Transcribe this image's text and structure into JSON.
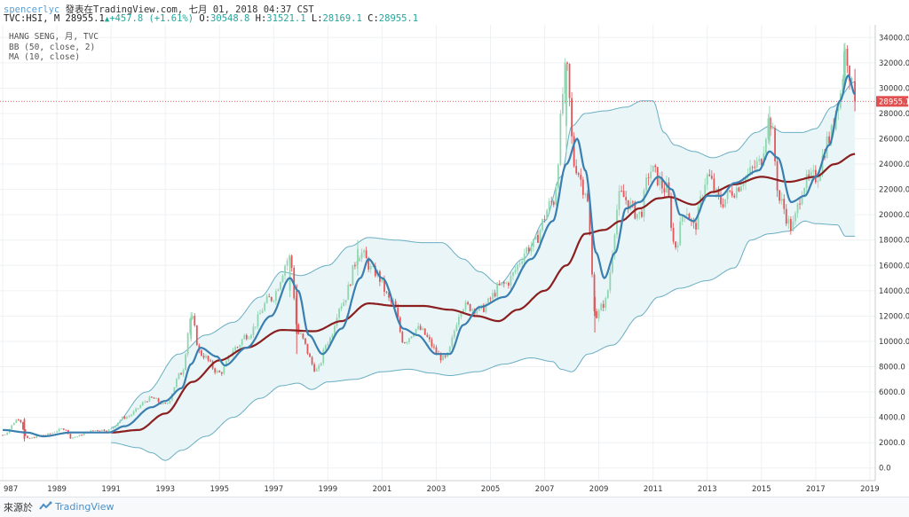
{
  "header": {
    "user": "spencerlyc",
    "published": "發表在TradingView.com, 七月 01, 2018 04:37 CST",
    "symbol": "TVC:HSI, M",
    "last": "28955.1",
    "change": "+457.8 (+1.61%)",
    "open_label": "O:",
    "open": "30548.8",
    "high_label": "H:",
    "high": "31521.1",
    "low_label": "L:",
    "low": "28169.1",
    "close_label": "C:",
    "close": "28955.1"
  },
  "legend": {
    "line1": "HANG SENG, 月, TVC",
    "line2": "BB (50, close, 2)",
    "line3": "MA (10, close)"
  },
  "footer": {
    "source_label": "來源於",
    "brand": "TradingView",
    "logo_icon": "tradingview-logo-icon"
  },
  "colors": {
    "up": "#8fd6b0",
    "down": "#e0565b",
    "ma": "#3a7fb0",
    "bb_basis": "#8b1f1f",
    "bb_band": "#6aaec3",
    "bb_fill": "#e9f5f6",
    "price_line": "#e05050"
  },
  "chart_data": {
    "type": "candlestick",
    "interval": "monthly",
    "title": "HANG SENG, 月, TVC",
    "indicators": [
      "BB (50, close, 2)",
      "MA (10, close)"
    ],
    "last_price_label": "28955.1",
    "x_ticks": [
      "987",
      "1989",
      "1991",
      "1993",
      "1995",
      "1997",
      "1999",
      "2001",
      "2003",
      "2005",
      "2007",
      "2009",
      "2011",
      "2013",
      "2015",
      "2017",
      "2019"
    ],
    "y_ticks": [
      "0.0",
      "2000.0",
      "4000.0",
      "6000.0",
      "8000.0",
      "10000.0",
      "12000.0",
      "14000.0",
      "16000.0",
      "18000.0",
      "20000.0",
      "22000.0",
      "24000.0",
      "26000.0",
      "28000.0",
      "30000.0",
      "32000.0",
      "34000.0"
    ],
    "xlim": [
      1986.9,
      2019.2
    ],
    "ylim": [
      -1000,
      35000
    ],
    "close_keypoints": [
      [
        1987.0,
        2600
      ],
      [
        1987.6,
        3900
      ],
      [
        1987.9,
        2300
      ],
      [
        1988.5,
        2600
      ],
      [
        1989.3,
        3100
      ],
      [
        1989.5,
        2400
      ],
      [
        1990.5,
        3000
      ],
      [
        1990.9,
        3000
      ],
      [
        1991.5,
        4000
      ],
      [
        1992.5,
        5500
      ],
      [
        1993.0,
        5000
      ],
      [
        1993.6,
        7500
      ],
      [
        1993.95,
        11900
      ],
      [
        1994.3,
        9000
      ],
      [
        1995.0,
        7500
      ],
      [
        1995.6,
        9500
      ],
      [
        1996.0,
        10500
      ],
      [
        1996.9,
        13400
      ],
      [
        1997.6,
        16600
      ],
      [
        1997.9,
        10600
      ],
      [
        1998.6,
        7700
      ],
      [
        1999.0,
        10000
      ],
      [
        1999.5,
        13000
      ],
      [
        2000.2,
        17000
      ],
      [
        2000.7,
        15500
      ],
      [
        2001.4,
        13000
      ],
      [
        2001.8,
        10000
      ],
      [
        2002.3,
        11000
      ],
      [
        2003.3,
        8600
      ],
      [
        2004.0,
        12800
      ],
      [
        2004.6,
        12500
      ],
      [
        2005.5,
        14500
      ],
      [
        2006.5,
        17500
      ],
      [
        2007.3,
        21000
      ],
      [
        2007.8,
        31400
      ],
      [
        2008.1,
        24000
      ],
      [
        2008.5,
        22000
      ],
      [
        2008.9,
        12000
      ],
      [
        2009.2,
        13000
      ],
      [
        2009.8,
        21500
      ],
      [
        2010.5,
        20000
      ],
      [
        2010.9,
        23500
      ],
      [
        2011.5,
        22000
      ],
      [
        2011.8,
        17500
      ],
      [
        2012.2,
        20500
      ],
      [
        2012.5,
        19000
      ],
      [
        2013.0,
        23000
      ],
      [
        2013.5,
        21000
      ],
      [
        2014.0,
        22000
      ],
      [
        2014.4,
        23000
      ],
      [
        2014.9,
        24000
      ],
      [
        2015.3,
        27500
      ],
      [
        2015.7,
        21000
      ],
      [
        2016.1,
        19000
      ],
      [
        2016.6,
        22500
      ],
      [
        2017.0,
        23000
      ],
      [
        2017.5,
        26000
      ],
      [
        2017.9,
        29500
      ],
      [
        2018.1,
        32900
      ],
      [
        2018.45,
        28955.1
      ]
    ],
    "ma_keypoints": [
      [
        1987.0,
        3000
      ],
      [
        1987.9,
        2800
      ],
      [
        1988.5,
        2500
      ],
      [
        1989.5,
        2800
      ],
      [
        1990.9,
        2800
      ],
      [
        1991.5,
        3300
      ],
      [
        1992.5,
        4800
      ],
      [
        1993.0,
        5300
      ],
      [
        1993.6,
        6300
      ],
      [
        1993.95,
        8200
      ],
      [
        1994.3,
        9500
      ],
      [
        1994.9,
        8800
      ],
      [
        1995.2,
        8100
      ],
      [
        1996.0,
        9500
      ],
      [
        1996.9,
        12000
      ],
      [
        1997.6,
        15000
      ],
      [
        1997.9,
        14000
      ],
      [
        1998.3,
        10500
      ],
      [
        1998.8,
        9000
      ],
      [
        1999.5,
        11000
      ],
      [
        2000.2,
        15000
      ],
      [
        2000.5,
        16500
      ],
      [
        2001.0,
        15000
      ],
      [
        2001.8,
        11000
      ],
      [
        2002.3,
        10500
      ],
      [
        2003.0,
        9000
      ],
      [
        2003.5,
        9000
      ],
      [
        2004.0,
        11300
      ],
      [
        2004.6,
        12700
      ],
      [
        2005.5,
        13500
      ],
      [
        2006.5,
        16500
      ],
      [
        2007.3,
        19500
      ],
      [
        2007.8,
        24000
      ],
      [
        2008.2,
        26000
      ],
      [
        2008.5,
        23500
      ],
      [
        2008.9,
        17000
      ],
      [
        2009.2,
        15000
      ],
      [
        2009.6,
        17000
      ],
      [
        2010.0,
        20500
      ],
      [
        2010.5,
        21000
      ],
      [
        2011.2,
        23000
      ],
      [
        2011.7,
        22000
      ],
      [
        2012.0,
        20000
      ],
      [
        2012.5,
        19500
      ],
      [
        2013.0,
        21500
      ],
      [
        2013.5,
        21500
      ],
      [
        2014.0,
        22500
      ],
      [
        2014.9,
        23500
      ],
      [
        2015.3,
        25000
      ],
      [
        2015.6,
        24500
      ],
      [
        2016.1,
        21000
      ],
      [
        2016.6,
        21500
      ],
      [
        2017.0,
        23000
      ],
      [
        2017.5,
        25500
      ],
      [
        2017.9,
        29000
      ],
      [
        2018.2,
        31000
      ],
      [
        2018.45,
        29500
      ]
    ],
    "bb_basis_keypoints": [
      [
        1991.0,
        2800
      ],
      [
        1992.0,
        3000
      ],
      [
        1993.0,
        4300
      ],
      [
        1994.0,
        6800
      ],
      [
        1995.0,
        8500
      ],
      [
        1996.0,
        9500
      ],
      [
        1997.3,
        10900
      ],
      [
        1998.5,
        10800
      ],
      [
        1999.5,
        11600
      ],
      [
        2000.5,
        13000
      ],
      [
        2001.5,
        12800
      ],
      [
        2002.5,
        12800
      ],
      [
        2003.5,
        12500
      ],
      [
        2004.5,
        12000
      ],
      [
        2005.3,
        11600
      ],
      [
        2006.0,
        12500
      ],
      [
        2007.0,
        14000
      ],
      [
        2007.8,
        16000
      ],
      [
        2008.5,
        18500
      ],
      [
        2009.2,
        18800
      ],
      [
        2009.8,
        19500
      ],
      [
        2010.5,
        20500
      ],
      [
        2011.2,
        21300
      ],
      [
        2011.6,
        21400
      ],
      [
        2012.5,
        20800
      ],
      [
        2013.2,
        21800
      ],
      [
        2014.0,
        22400
      ],
      [
        2015.0,
        23000
      ],
      [
        2016.0,
        22600
      ],
      [
        2017.0,
        23000
      ],
      [
        2017.7,
        24000
      ],
      [
        2018.45,
        24800
      ]
    ],
    "bb_upper_keypoints": [
      [
        1991.0,
        3200
      ],
      [
        1992.3,
        6000
      ],
      [
        1993.5,
        9000
      ],
      [
        1994.5,
        10500
      ],
      [
        1995.5,
        11500
      ],
      [
        1996.5,
        13500
      ],
      [
        1997.3,
        15500
      ],
      [
        1998.0,
        15200
      ],
      [
        1999.0,
        16000
      ],
      [
        1999.8,
        17500
      ],
      [
        2000.5,
        18200
      ],
      [
        2001.5,
        18000
      ],
      [
        2002.5,
        17800
      ],
      [
        2003.2,
        17800
      ],
      [
        2004.0,
        16500
      ],
      [
        2004.6,
        15500
      ],
      [
        2005.3,
        14500
      ],
      [
        2006.2,
        16500
      ],
      [
        2007.0,
        19500
      ],
      [
        2007.6,
        23000
      ],
      [
        2008.0,
        27000
      ],
      [
        2008.5,
        28000
      ],
      [
        2009.2,
        28200
      ],
      [
        2010.0,
        28500
      ],
      [
        2010.6,
        29000
      ],
      [
        2011.0,
        29000
      ],
      [
        2011.4,
        26500
      ],
      [
        2011.8,
        25500
      ],
      [
        2012.5,
        25000
      ],
      [
        2013.2,
        24500
      ],
      [
        2014.0,
        25000
      ],
      [
        2014.8,
        26500
      ],
      [
        2015.3,
        27000
      ],
      [
        2015.8,
        26500
      ],
      [
        2016.5,
        26500
      ],
      [
        2017.0,
        26800
      ],
      [
        2017.6,
        28500
      ],
      [
        2018.45,
        30500
      ]
    ],
    "bb_lower_keypoints": [
      [
        1991.0,
        2000
      ],
      [
        1992.0,
        1600
      ],
      [
        1992.5,
        1200
      ],
      [
        1993.0,
        600
      ],
      [
        1993.6,
        1400
      ],
      [
        1994.5,
        2500
      ],
      [
        1995.5,
        4000
      ],
      [
        1996.5,
        5500
      ],
      [
        1997.3,
        6500
      ],
      [
        1997.9,
        6700
      ],
      [
        1998.4,
        6200
      ],
      [
        1999.0,
        6800
      ],
      [
        2000.0,
        7000
      ],
      [
        2001.0,
        7600
      ],
      [
        2002.0,
        7800
      ],
      [
        2002.8,
        7500
      ],
      [
        2003.5,
        7300
      ],
      [
        2004.5,
        7600
      ],
      [
        2005.5,
        8200
      ],
      [
        2006.5,
        8700
      ],
      [
        2007.3,
        8400
      ],
      [
        2007.6,
        7800
      ],
      [
        2008.0,
        7600
      ],
      [
        2008.6,
        9000
      ],
      [
        2009.5,
        9700
      ],
      [
        2010.5,
        12000
      ],
      [
        2011.2,
        13500
      ],
      [
        2012.0,
        14200
      ],
      [
        2013.0,
        14800
      ],
      [
        2014.0,
        15800
      ],
      [
        2014.6,
        18000
      ],
      [
        2015.3,
        18500
      ],
      [
        2016.0,
        18700
      ],
      [
        2016.6,
        19500
      ],
      [
        2017.0,
        19300
      ],
      [
        2017.8,
        19200
      ],
      [
        2018.1,
        18300
      ],
      [
        2018.45,
        18300
      ]
    ],
    "spikes": [
      {
        "x": 1987.8,
        "high": 3950,
        "low": 2100,
        "open": 3850,
        "close": 2300
      },
      {
        "x": 1993.95,
        "high": 12300,
        "low": 10000,
        "open": 10200,
        "close": 11900
      },
      {
        "x": 1997.6,
        "high": 16800,
        "low": 13500,
        "open": 14000,
        "close": 16600
      },
      {
        "x": 1997.85,
        "high": 14500,
        "low": 9000,
        "open": 14000,
        "close": 10600
      },
      {
        "x": 2000.1,
        "high": 18000,
        "low": 15200,
        "open": 16000,
        "close": 17300
      },
      {
        "x": 2007.8,
        "high": 31900,
        "low": 25000,
        "open": 27000,
        "close": 31400
      },
      {
        "x": 2008.85,
        "high": 14000,
        "low": 10700,
        "open": 13500,
        "close": 12000
      },
      {
        "x": 2015.3,
        "high": 28600,
        "low": 25500,
        "open": 25800,
        "close": 27500
      },
      {
        "x": 2018.05,
        "high": 33500,
        "low": 29500,
        "open": 30000,
        "close": 32900
      },
      {
        "x": 2018.45,
        "high": 31521.1,
        "low": 28169.1,
        "open": 30548.8,
        "close": 28955.1
      }
    ]
  }
}
